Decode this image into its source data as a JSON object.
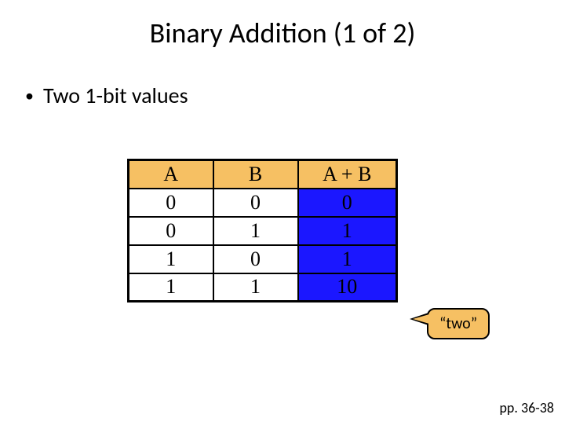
{
  "title": "Binary Addition (1 of 2)",
  "bullet_text": "Two 1-bit values",
  "table": {
    "header": {
      "a": "A",
      "b": "B",
      "ab": "A + B"
    },
    "rows": [
      {
        "a": "0",
        "b": "0",
        "ab": "0"
      },
      {
        "a": "0",
        "b": "1",
        "ab": "1"
      },
      {
        "a": "1",
        "b": "0",
        "ab": "1"
      },
      {
        "a": "1",
        "b": "1",
        "ab": "10"
      }
    ],
    "header_bg": "#f6c063",
    "result_bg": "#1b17ff",
    "cell_bg": "#ffffff",
    "border_color": "#000000",
    "col_widths": {
      "a": 108,
      "b": 108,
      "ab": 126
    },
    "font_family": "Times New Roman",
    "font_size": 26
  },
  "callout_text": "“two”",
  "page_ref": "pp. 36-38",
  "background_color": "#ffffff"
}
